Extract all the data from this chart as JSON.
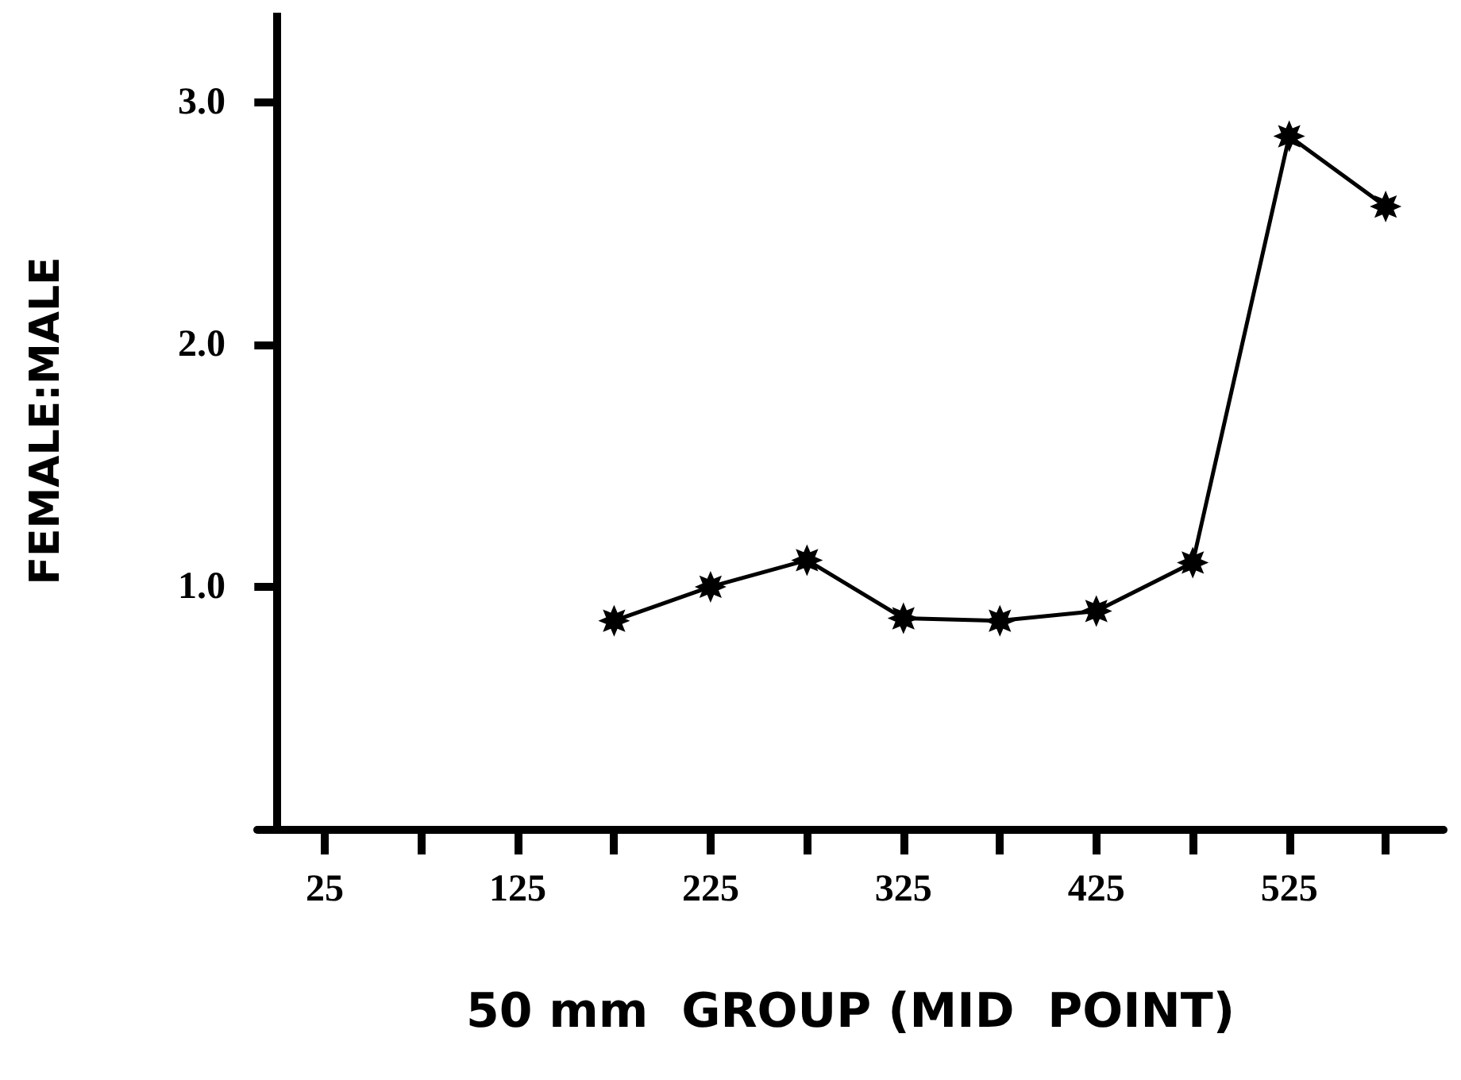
{
  "chart_data": {
    "type": "line",
    "xlabel": "50 mm  GROUP (MID  POINT)",
    "ylabel": "FEMALE:MALE",
    "x": [
      175,
      225,
      275,
      325,
      375,
      425,
      475,
      525,
      575
    ],
    "series": [
      {
        "color": "#000000",
        "values": [
          0.86,
          1.0,
          1.11,
          0.87,
          0.86,
          0.9,
          1.1,
          2.86,
          2.57
        ]
      }
    ],
    "xlim": [
      -10,
      605
    ],
    "xticks": [
      25,
      {
        "value": 75,
        "label": null
      },
      125,
      {
        "value": 175,
        "label": null
      },
      225,
      {
        "value": 275,
        "label": null
      },
      325,
      {
        "value": 375,
        "label": null
      },
      425,
      {
        "value": 475,
        "label": null
      },
      525,
      {
        "value": 575,
        "label": null
      }
    ],
    "ylim": [
      0,
      3.37
    ],
    "yticks": [
      {
        "value": 1,
        "label": "1.0"
      },
      {
        "value": 2,
        "label": "2.0"
      },
      {
        "value": 3,
        "label": "3.0"
      }
    ],
    "grid": false,
    "marker": "star",
    "line_style": "solid"
  }
}
